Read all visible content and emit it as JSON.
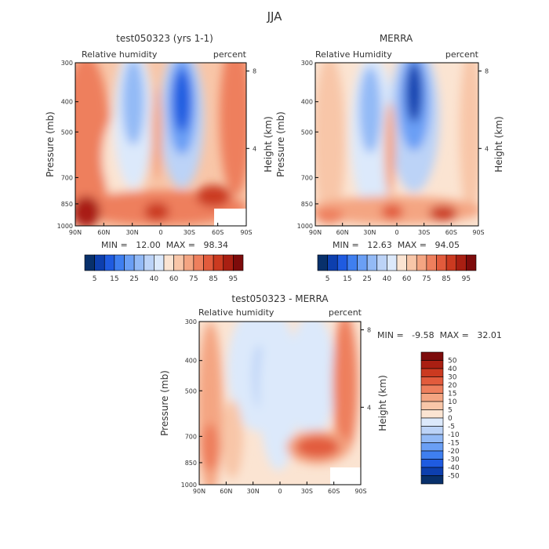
{
  "figure": {
    "title": "JJA"
  },
  "chart_data": [
    {
      "type": "heatmap",
      "title": "test050323 (yrs 1-1)",
      "subtitle_left": "Relative humidity",
      "subtitle_right": "percent",
      "xlabel": "",
      "ylabel": "Pressure (mb)",
      "y2label": "Height (km)",
      "xticks": [
        "90N",
        "60N",
        "30N",
        "0",
        "30S",
        "60S",
        "90S"
      ],
      "yticks": [
        300,
        400,
        500,
        700,
        850,
        1000
      ],
      "y2ticks": [
        8,
        4
      ],
      "ylim": [
        1000,
        300
      ],
      "stats": "MIN =   12.00  MAX =   98.34",
      "colorbar": {
        "levels": [
          5,
          10,
          15,
          20,
          25,
          30,
          40,
          50,
          60,
          65,
          70,
          75,
          80,
          85,
          90,
          95
        ],
        "labels": [
          "5",
          "15",
          "25",
          "40",
          "60",
          "75",
          "85",
          "95"
        ]
      }
    },
    {
      "type": "heatmap",
      "title": "MERRA",
      "subtitle_left": "Relative Humidity",
      "subtitle_right": "percent",
      "xlabel": "",
      "ylabel": "Pressure (mb)",
      "y2label": "Height (km)",
      "xticks": [
        "90N",
        "60N",
        "30N",
        "0",
        "30S",
        "60S",
        "90S"
      ],
      "yticks": [
        300,
        400,
        500,
        700,
        850,
        1000
      ],
      "y2ticks": [
        8,
        4
      ],
      "ylim": [
        1000,
        300
      ],
      "stats": "MIN =   12.63  MAX =   94.05",
      "colorbar": {
        "levels": [
          5,
          10,
          15,
          20,
          25,
          30,
          40,
          50,
          60,
          65,
          70,
          75,
          80,
          85,
          90,
          95
        ],
        "labels": [
          "5",
          "15",
          "25",
          "40",
          "60",
          "75",
          "85",
          "95"
        ]
      }
    },
    {
      "type": "heatmap",
      "title": "test050323 - MERRA",
      "subtitle_left": "Relative humidity",
      "subtitle_right": "percent",
      "xlabel": "",
      "ylabel": "Pressure (mb)",
      "y2label": "Height (km)",
      "xticks": [
        "90N",
        "60N",
        "30N",
        "0",
        "30S",
        "60S",
        "90S"
      ],
      "yticks": [
        300,
        400,
        500,
        700,
        850,
        1000
      ],
      "y2ticks": [
        8,
        4
      ],
      "ylim": [
        1000,
        300
      ],
      "stats": "MIN =   -9.58  MAX =   32.01",
      "colorbar": {
        "labels": [
          "50",
          "40",
          "30",
          "20",
          "15",
          "10",
          "5",
          "0",
          "-5",
          "-10",
          "-15",
          "-20",
          "-30",
          "-40",
          "-50"
        ]
      }
    }
  ],
  "colors": {
    "seq": [
      "#08306b",
      "#0d3fae",
      "#1f5be0",
      "#3f7ff0",
      "#6a9ff5",
      "#93baf6",
      "#bcd3f7",
      "#dce9fb",
      "#fbe4d2",
      "#f8c6a8",
      "#f4a582",
      "#ee7f5d",
      "#e25b3c",
      "#cb3a20",
      "#a91f12",
      "#7d0b0b"
    ],
    "diff": [
      "#08306b",
      "#0d3fae",
      "#1f5be0",
      "#3f7ff0",
      "#6a9ff5",
      "#93baf6",
      "#bcd3f7",
      "#dce9fb",
      "#fbe4d2",
      "#f8c6a8",
      "#f4a582",
      "#ee7f5d",
      "#e25b3c",
      "#cb3a20",
      "#a91f12",
      "#7d0b0b"
    ]
  }
}
